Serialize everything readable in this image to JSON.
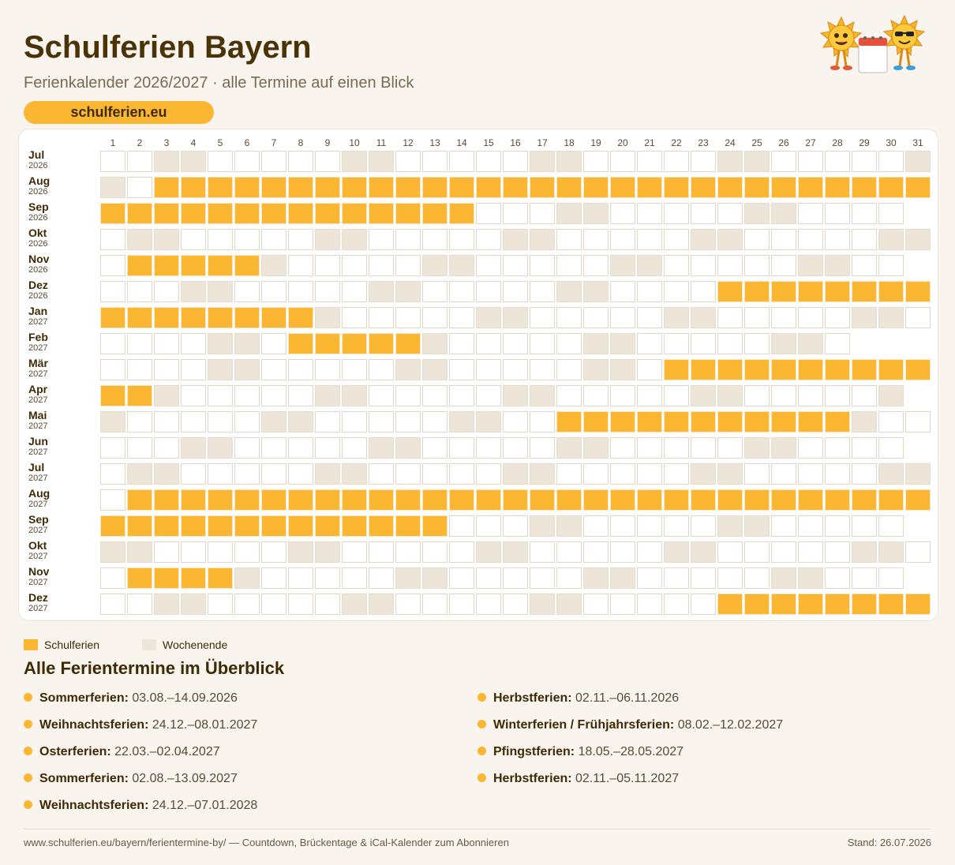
{
  "header": {
    "title": "Schulferien Bayern",
    "subtitle": "Ferienkalender 2026/2027 · alle Termine auf einen Blick",
    "brand": "schulferien.eu"
  },
  "colors": {
    "holiday": "#fbb731",
    "weekend": "#ede5d8",
    "workday": "#ffffff",
    "title": "#4a3407"
  },
  "logo": {
    "icon": "sun-mascots-calendar-icon"
  },
  "calendar": {
    "days": [
      "1",
      "2",
      "3",
      "4",
      "5",
      "6",
      "7",
      "8",
      "9",
      "10",
      "11",
      "12",
      "13",
      "14",
      "15",
      "16",
      "17",
      "18",
      "19",
      "20",
      "21",
      "22",
      "23",
      "24",
      "25",
      "26",
      "27",
      "28",
      "29",
      "30",
      "31"
    ],
    "months": [
      {
        "name": "Jul",
        "year": "2026",
        "ndays": 31,
        "start_weekday": 3,
        "holidays": []
      },
      {
        "name": "Aug",
        "year": "2026",
        "ndays": 31,
        "start_weekday": 6,
        "holidays": [
          [
            3,
            31
          ]
        ]
      },
      {
        "name": "Sep",
        "year": "2026",
        "ndays": 30,
        "start_weekday": 2,
        "holidays": [
          [
            1,
            14
          ]
        ]
      },
      {
        "name": "Okt",
        "year": "2026",
        "ndays": 31,
        "start_weekday": 4,
        "holidays": []
      },
      {
        "name": "Nov",
        "year": "2026",
        "ndays": 30,
        "start_weekday": 0,
        "holidays": [
          [
            2,
            6
          ]
        ]
      },
      {
        "name": "Dez",
        "year": "2026",
        "ndays": 31,
        "start_weekday": 2,
        "holidays": [
          [
            24,
            31
          ]
        ]
      },
      {
        "name": "Jan",
        "year": "2027",
        "ndays": 31,
        "start_weekday": 5,
        "holidays": [
          [
            1,
            8
          ]
        ]
      },
      {
        "name": "Feb",
        "year": "2027",
        "ndays": 28,
        "start_weekday": 1,
        "holidays": [
          [
            8,
            12
          ]
        ]
      },
      {
        "name": "Mär",
        "year": "2027",
        "ndays": 31,
        "start_weekday": 1,
        "holidays": [
          [
            22,
            31
          ]
        ]
      },
      {
        "name": "Apr",
        "year": "2027",
        "ndays": 30,
        "start_weekday": 4,
        "holidays": [
          [
            1,
            2
          ]
        ]
      },
      {
        "name": "Mai",
        "year": "2027",
        "ndays": 31,
        "start_weekday": 6,
        "holidays": [
          [
            18,
            28
          ]
        ]
      },
      {
        "name": "Jun",
        "year": "2027",
        "ndays": 30,
        "start_weekday": 2,
        "holidays": []
      },
      {
        "name": "Jul",
        "year": "2027",
        "ndays": 31,
        "start_weekday": 4,
        "holidays": []
      },
      {
        "name": "Aug",
        "year": "2027",
        "ndays": 31,
        "start_weekday": 0,
        "holidays": [
          [
            2,
            31
          ]
        ]
      },
      {
        "name": "Sep",
        "year": "2027",
        "ndays": 30,
        "start_weekday": 3,
        "holidays": [
          [
            1,
            13
          ]
        ]
      },
      {
        "name": "Okt",
        "year": "2027",
        "ndays": 31,
        "start_weekday": 5,
        "holidays": []
      },
      {
        "name": "Nov",
        "year": "2027",
        "ndays": 30,
        "start_weekday": 1,
        "holidays": [
          [
            2,
            5
          ]
        ]
      },
      {
        "name": "Dez",
        "year": "2027",
        "ndays": 31,
        "start_weekday": 3,
        "holidays": [
          [
            24,
            31
          ]
        ]
      }
    ]
  },
  "legend": {
    "holiday": "Schulferien",
    "weekend": "Wochenende"
  },
  "overview": {
    "title": "Alle Ferientermine im Überblick",
    "left": [
      {
        "name": "Sommerferien:",
        "dates": "03.08.–14.09.2026"
      },
      {
        "name": "Weihnachtsferien:",
        "dates": "24.12.–08.01.2027"
      },
      {
        "name": "Osterferien:",
        "dates": "22.03.–02.04.2027"
      },
      {
        "name": "Sommerferien:",
        "dates": "02.08.–13.09.2027"
      },
      {
        "name": "Weihnachtsferien:",
        "dates": "24.12.–07.01.2028"
      }
    ],
    "right": [
      {
        "name": "Herbstferien:",
        "dates": "02.11.–06.11.2026"
      },
      {
        "name": "Winterferien / Frühjahrsferien:",
        "dates": "08.02.–12.02.2027"
      },
      {
        "name": "Pfingstferien:",
        "dates": "18.05.–28.05.2027"
      },
      {
        "name": "Herbstferien:",
        "dates": "02.11.–05.11.2027"
      }
    ]
  },
  "footer": {
    "link": "www.schulferien.eu/bayern/ferientermine-by/ — Countdown, Brückentage & iCal-Kalender zum Abonnieren",
    "stand": "Stand: 26.07.2026"
  }
}
